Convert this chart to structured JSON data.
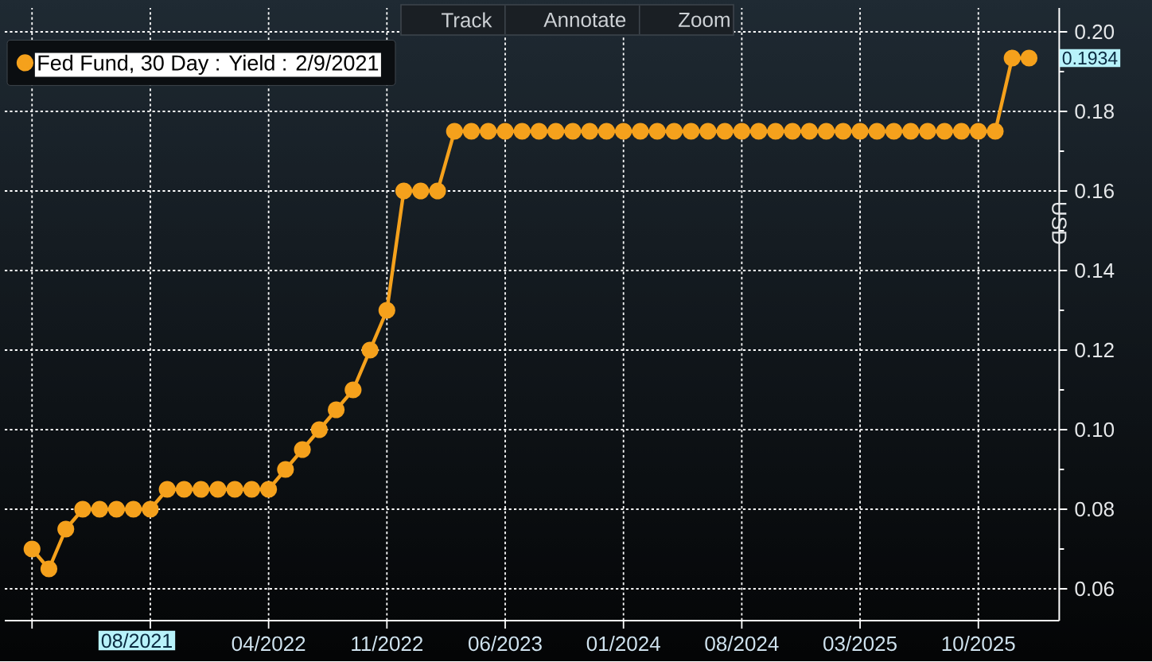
{
  "chart_data": {
    "type": "line",
    "x": [
      "2021-02",
      "2021-03",
      "2021-04",
      "2021-05",
      "2021-06",
      "2021-07",
      "2021-08",
      "2021-09",
      "2021-10",
      "2021-11",
      "2021-12",
      "2022-01",
      "2022-02",
      "2022-03",
      "2022-04",
      "2022-05",
      "2022-06",
      "2022-07",
      "2022-08",
      "2022-09",
      "2022-10",
      "2022-11",
      "2022-12",
      "2023-01",
      "2023-02",
      "2023-03",
      "2023-04",
      "2023-05",
      "2023-06",
      "2023-07",
      "2023-08",
      "2023-09",
      "2023-10",
      "2023-11",
      "2023-12",
      "2024-01",
      "2024-02",
      "2024-03",
      "2024-04",
      "2024-05",
      "2024-06",
      "2024-07",
      "2024-08",
      "2024-09",
      "2024-10",
      "2024-11",
      "2024-12",
      "2025-01",
      "2025-02",
      "2025-03",
      "2025-04",
      "2025-05",
      "2025-06",
      "2025-07",
      "2025-08",
      "2025-09",
      "2025-10",
      "2025-11",
      "2025-12",
      "2026-01"
    ],
    "series": [
      {
        "name": "Fed Fund, 30 Day : Yield : 2/9/2021",
        "color": "#f5a11c",
        "values": [
          0.07,
          0.065,
          0.075,
          0.08,
          0.08,
          0.08,
          0.08,
          0.08,
          0.085,
          0.085,
          0.085,
          0.085,
          0.085,
          0.085,
          0.085,
          0.09,
          0.095,
          0.1,
          0.105,
          0.11,
          0.12,
          0.13,
          0.16,
          0.16,
          0.16,
          0.175,
          0.175,
          0.175,
          0.175,
          0.175,
          0.175,
          0.175,
          0.175,
          0.175,
          0.175,
          0.175,
          0.175,
          0.175,
          0.175,
          0.175,
          0.175,
          0.175,
          0.175,
          0.175,
          0.175,
          0.175,
          0.175,
          0.175,
          0.175,
          0.175,
          0.175,
          0.175,
          0.175,
          0.175,
          0.175,
          0.175,
          0.175,
          0.175,
          0.1934,
          0.1934
        ]
      }
    ],
    "ylabel": "USD",
    "xlim": [
      "2020-12-13",
      "2026-02-23"
    ],
    "ylim": [
      0.052,
      0.206
    ],
    "xticks": [
      {
        "value": "2021-02",
        "label": null
      },
      {
        "value": "2021-09",
        "label": null
      },
      {
        "value": "2022-04",
        "label": "04/2022"
      },
      {
        "value": "2022-11",
        "label": "11/2022"
      },
      {
        "value": "2023-06",
        "label": "06/2023"
      },
      {
        "value": "2024-01",
        "label": "01/2024"
      },
      {
        "value": "2024-08",
        "label": "08/2024"
      },
      {
        "value": "2025-03",
        "label": "03/2025"
      },
      {
        "value": "2025-10",
        "label": "10/2025"
      }
    ],
    "yticks": [
      {
        "value": 0.06,
        "label": "0.06"
      },
      {
        "value": 0.08,
        "label": "0.08"
      },
      {
        "value": 0.1,
        "label": "0.10"
      },
      {
        "value": 0.12,
        "label": "0.12"
      },
      {
        "value": 0.14,
        "label": "0.14"
      },
      {
        "value": 0.16,
        "label": "0.16"
      },
      {
        "value": 0.18,
        "label": "0.18"
      },
      {
        "value": 0.2,
        "label": "0.20"
      }
    ],
    "grid": true,
    "legend": "top left",
    "marker": "circle",
    "line_style": "solid",
    "annotations": [
      "Track",
      "Annotate",
      "Zoom",
      {
        "text": "0.1934",
        "x": "2026-01",
        "y": 0.1934
      },
      "08/2021"
    ]
  }
}
